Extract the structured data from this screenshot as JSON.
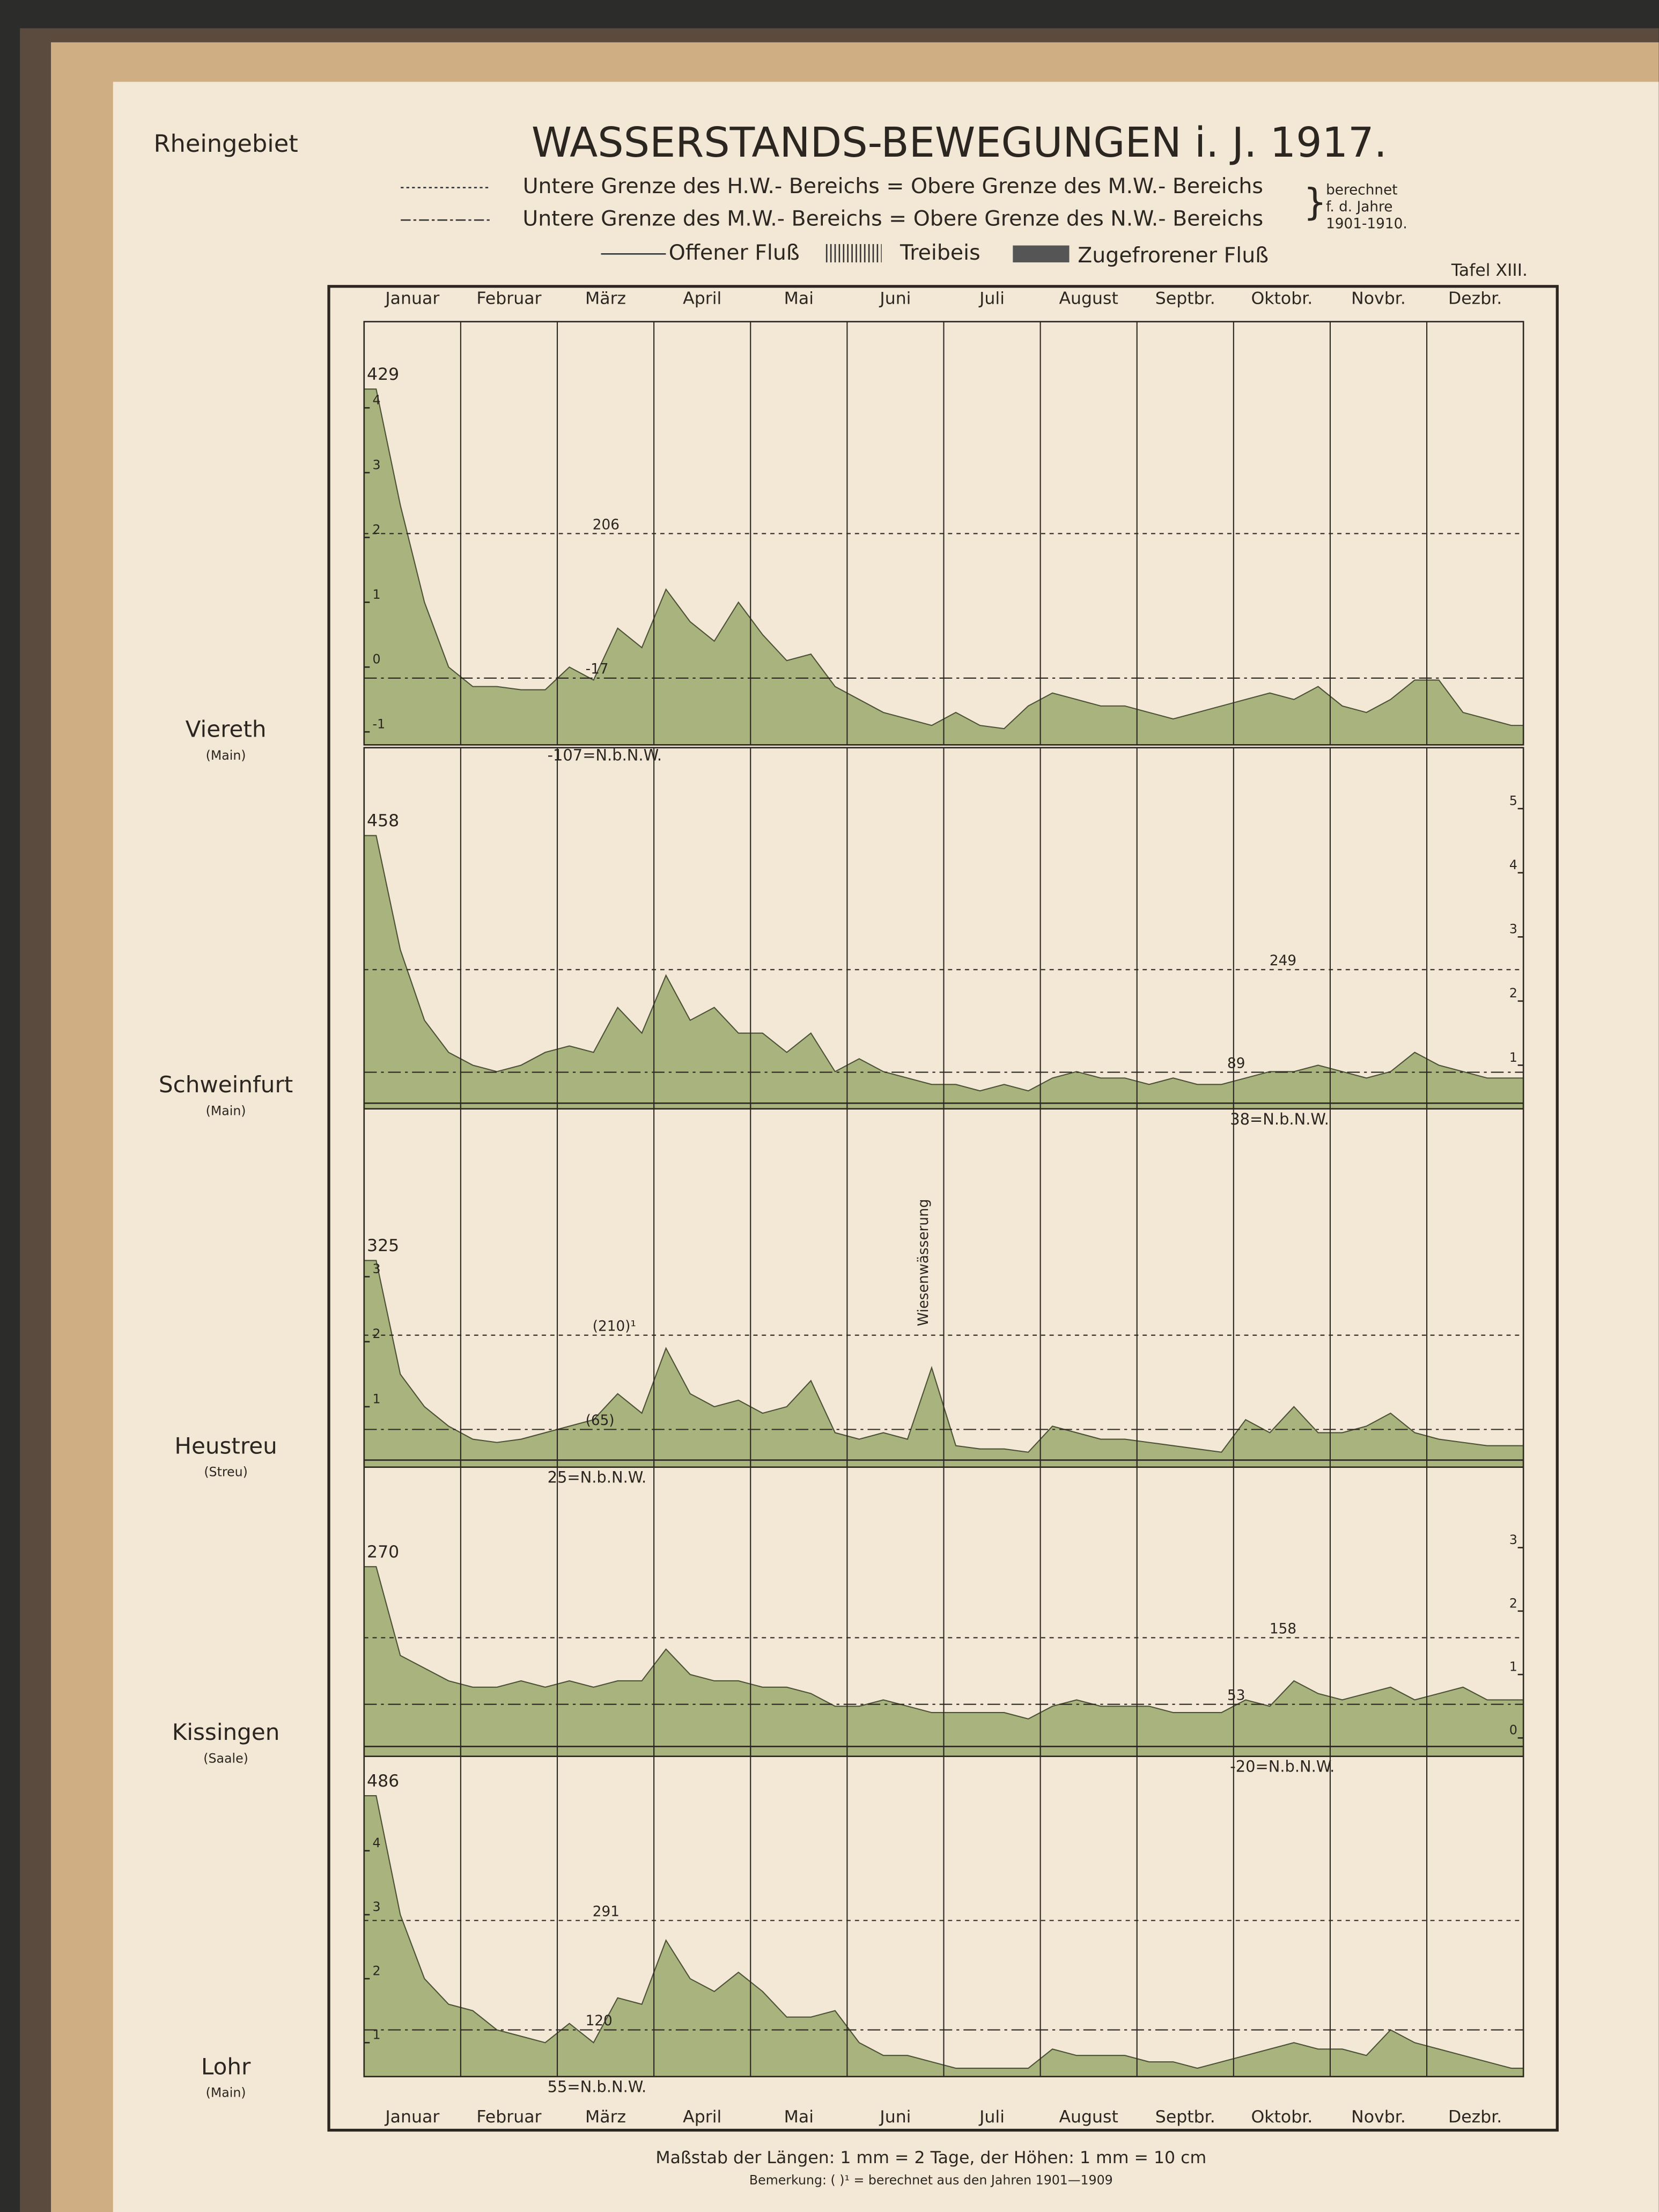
{
  "header": {
    "region": "Rheingebiet",
    "title": "WASSERSTANDS-BEWEGUNGEN i. J. 1917.",
    "mw_line_legend": "Untere Grenze des H.W.- Bereichs = Obere Grenze des M.W.- Bereichs",
    "nw_line_legend": "Untere Grenze des M.W.- Bereichs = Obere Grenze des N.W.- Bereichs",
    "period_note": [
      "berechnet",
      "f. d. Jahre",
      "1901-1910."
    ],
    "flow_legend": [
      "Offener Fluß",
      "Treibeis",
      "Zugefrorener Fluß"
    ],
    "plate": "Tafel XIII."
  },
  "months": [
    "Januar",
    "Februar",
    "März",
    "April",
    "Mai",
    "Juni",
    "Juli",
    "August",
    "Septbr.",
    "Oktobr.",
    "Novbr.",
    "Dezbr."
  ],
  "footer": {
    "scale": "Maßstab der Längen: 1 mm = 2 Tage, der Höhen: 1 mm = 10 cm",
    "remark": "Bemerkung: ( )¹ = berechnet aus den Jahren 1901—1909"
  },
  "chart_data": [
    {
      "type": "area",
      "station": "Viereth",
      "river": "(Main)",
      "color": "#a8b37e",
      "tick_side": "left",
      "ylim": [
        -1.2,
        5.33
      ],
      "yticks": [
        -1,
        0,
        1,
        2,
        3,
        4
      ],
      "peak": {
        "value": 4.29,
        "label": "429"
      },
      "mw": {
        "value": 2.06,
        "label": "206"
      },
      "nw": {
        "value": -0.17,
        "label": "-17"
      },
      "nbnw": {
        "value": -1.07,
        "label": "-107=N.b.N.W."
      },
      "values": [
        4.29,
        2.5,
        1.0,
        0.0,
        -0.3,
        -0.3,
        -0.35,
        -0.35,
        0.0,
        -0.2,
        0.6,
        0.3,
        1.2,
        0.7,
        0.4,
        1.0,
        0.5,
        0.1,
        0.2,
        -0.3,
        -0.5,
        -0.7,
        -0.8,
        -0.9,
        -0.7,
        -0.9,
        -0.95,
        -0.6,
        -0.4,
        -0.5,
        -0.6,
        -0.6,
        -0.7,
        -0.8,
        -0.7,
        -0.6,
        -0.5,
        -0.4,
        -0.5,
        -0.3,
        -0.6,
        -0.7,
        -0.5,
        -0.2,
        -0.2,
        -0.7,
        -0.8,
        -0.9
      ]
    },
    {
      "type": "area",
      "station": "Schweinfurt",
      "river": "(Main)",
      "color": "#a8b37e",
      "tick_side": "right",
      "ylim": [
        0.32,
        5.95
      ],
      "yticks": [
        1,
        2,
        3,
        4,
        5
      ],
      "peak": {
        "value": 4.58,
        "label": "458"
      },
      "mw": {
        "value": 2.49,
        "label": "249"
      },
      "nw": {
        "value": 0.89,
        "label": "89"
      },
      "nbnw": {
        "value": 0.38,
        "label": "38=N.b.N.W."
      },
      "values": [
        4.58,
        2.8,
        1.7,
        1.2,
        1.0,
        0.9,
        1.0,
        1.2,
        1.3,
        1.2,
        1.9,
        1.5,
        2.4,
        1.7,
        1.9,
        1.5,
        1.5,
        1.2,
        1.5,
        0.9,
        1.1,
        0.9,
        0.8,
        0.7,
        0.7,
        0.6,
        0.7,
        0.6,
        0.8,
        0.9,
        0.8,
        0.8,
        0.7,
        0.8,
        0.7,
        0.7,
        0.8,
        0.9,
        0.9,
        1.0,
        0.9,
        0.8,
        0.9,
        1.2,
        1.0,
        0.9,
        0.8,
        0.8
      ]
    },
    {
      "type": "area",
      "station": "Heustreu",
      "river": "(Streu)",
      "color": "#a8b37e",
      "tick_side": "left",
      "ylim": [
        0.07,
        5.67
      ],
      "yticks": [
        1,
        2,
        3
      ],
      "peak": {
        "value": 3.25,
        "label": "325"
      },
      "mw": {
        "value": 2.1,
        "label": "(210)¹"
      },
      "nw": {
        "value": 0.65,
        "label": "(65)"
      },
      "nbnw": {
        "value": 0.25,
        "label": "25=N.b.N.W."
      },
      "annotation": "Wiesenwässerung",
      "values": [
        3.25,
        1.5,
        1.0,
        0.7,
        0.5,
        0.45,
        0.5,
        0.6,
        0.7,
        0.8,
        1.2,
        0.9,
        1.9,
        1.2,
        1.0,
        1.1,
        0.9,
        1.0,
        1.4,
        0.6,
        0.5,
        0.6,
        0.5,
        1.6,
        0.4,
        0.35,
        0.35,
        0.3,
        0.7,
        0.6,
        0.5,
        0.5,
        0.45,
        0.4,
        0.35,
        0.3,
        0.8,
        0.6,
        1.0,
        0.6,
        0.6,
        0.7,
        0.9,
        0.6,
        0.5,
        0.45,
        0.4,
        0.4
      ]
    },
    {
      "type": "area",
      "station": "Kissingen",
      "river": "(Saale)",
      "color": "#a8b37e",
      "tick_side": "right",
      "ylim": [
        -0.29,
        4.38
      ],
      "yticks": [
        0,
        1,
        2,
        3
      ],
      "peak": {
        "value": 2.7,
        "label": "270"
      },
      "mw": {
        "value": 1.58,
        "label": "158"
      },
      "nw": {
        "value": 0.53,
        "label": "53"
      },
      "nbnw": {
        "value": -0.2,
        "label": "-20=N.b.N.W."
      },
      "values": [
        2.7,
        1.3,
        1.1,
        0.9,
        0.8,
        0.8,
        0.9,
        0.8,
        0.9,
        0.8,
        0.9,
        0.9,
        1.4,
        1.0,
        0.9,
        0.9,
        0.8,
        0.8,
        0.7,
        0.5,
        0.5,
        0.6,
        0.5,
        0.4,
        0.4,
        0.4,
        0.4,
        0.3,
        0.5,
        0.6,
        0.5,
        0.5,
        0.5,
        0.4,
        0.4,
        0.4,
        0.6,
        0.5,
        0.9,
        0.7,
        0.6,
        0.7,
        0.8,
        0.6,
        0.7,
        0.8,
        0.6,
        0.6
      ]
    },
    {
      "type": "area",
      "station": "Lohr",
      "river": "(Main)",
      "color": "#a8b37e",
      "tick_side": "left",
      "ylim": [
        0.47,
        5.63
      ],
      "yticks": [
        1,
        2,
        3,
        4
      ],
      "peak": {
        "value": 4.86,
        "label": "486"
      },
      "mw": {
        "value": 2.91,
        "label": "291"
      },
      "nw": {
        "value": 1.2,
        "label": "120"
      },
      "nbnw": {
        "value": 0.55,
        "label": "55=N.b.N.W."
      },
      "values": [
        4.86,
        3.0,
        2.0,
        1.6,
        1.5,
        1.2,
        1.1,
        1.0,
        1.3,
        1.0,
        1.7,
        1.6,
        2.6,
        2.0,
        1.8,
        2.1,
        1.8,
        1.4,
        1.4,
        1.5,
        1.0,
        0.8,
        0.8,
        0.7,
        0.6,
        0.6,
        0.6,
        0.6,
        0.9,
        0.8,
        0.8,
        0.8,
        0.7,
        0.7,
        0.6,
        0.7,
        0.8,
        0.9,
        1.0,
        0.9,
        0.9,
        0.8,
        1.2,
        1.0,
        0.9,
        0.8,
        0.7,
        0.6
      ]
    }
  ]
}
